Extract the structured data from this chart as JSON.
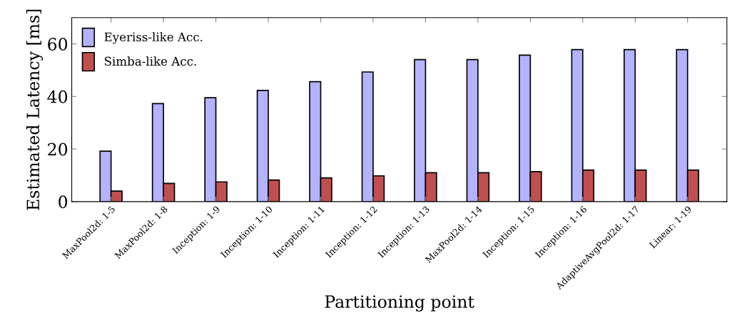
{
  "chart_data": {
    "type": "bar",
    "xlabel": "Partitioning point",
    "ylabel": "Estimated Latency [ms]",
    "categories": [
      "MaxPool2d: 1-5",
      "MaxPool2d: 1-8",
      "Inception: 1-9",
      "Inception: 1-10",
      "Inception: 1-11",
      "Inception: 1-12",
      "Inception: 1-13",
      "MaxPool2d: 1-14",
      "Inception: 1-15",
      "Inception: 1-16",
      "AdaptiveAvgPool2d: 1-17",
      "Linear: 1-19"
    ],
    "series": [
      {
        "name": "Eyeriss-like Acc.",
        "color": "#b3b3ff",
        "values": [
          19.2,
          37.3,
          39.5,
          42.3,
          45.6,
          49.3,
          54,
          54,
          55.7,
          57.8,
          57.8,
          57.8
        ]
      },
      {
        "name": "Simba-like Acc.",
        "color": "#c05050",
        "values": [
          4,
          6.9,
          7.5,
          8.2,
          9,
          9.8,
          11,
          11,
          11.4,
          12,
          12,
          12
        ]
      }
    ],
    "ylim": [
      0,
      70
    ],
    "yticks": [
      0,
      20,
      40,
      60
    ],
    "legend": "top left",
    "grid": false
  }
}
